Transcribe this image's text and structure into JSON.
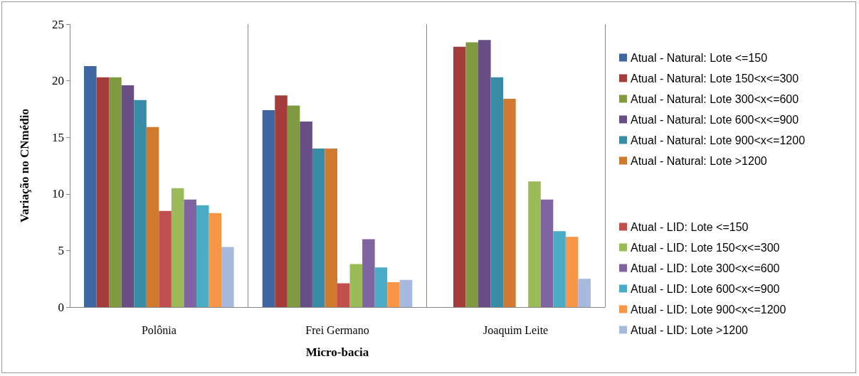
{
  "chart_data": {
    "type": "bar",
    "xlabel": "Micro-bacia",
    "ylabel": "Variação no CNmédio",
    "categories": [
      "Polônia",
      "Frei Germano",
      "Joaquim Leite"
    ],
    "ylim": [
      0,
      25
    ],
    "yticks": [
      0,
      5,
      10,
      15,
      20,
      25
    ],
    "grid": "x",
    "legend": "right",
    "series": [
      {
        "name": "Atual - Natural: Lote <=150",
        "color": "#3f66a0",
        "values": [
          21.3,
          17.4,
          null
        ]
      },
      {
        "name": "Atual - Natural: Lote 150<x<=300",
        "color": "#a33c3a",
        "values": [
          20.3,
          18.7,
          23.0
        ]
      },
      {
        "name": "Atual - Natural: Lote 300<x<=600",
        "color": "#7f9a41",
        "values": [
          20.3,
          17.8,
          23.4
        ]
      },
      {
        "name": "Atual - Natural: Lote 600<x<=900",
        "color": "#674f86",
        "values": [
          19.6,
          16.4,
          23.6
        ]
      },
      {
        "name": "Atual - Natural: Lote 900<x<=1200",
        "color": "#388ca6",
        "values": [
          18.3,
          14.0,
          20.3
        ]
      },
      {
        "name": "Atual - Natural: Lote >1200",
        "color": "#d07a2f",
        "values": [
          15.9,
          14.0,
          18.4
        ]
      },
      {
        "name": "Atual - LID: Lote <=150",
        "color": "#c0504d",
        "values": [
          8.5,
          2.1,
          null
        ]
      },
      {
        "name": "Atual - LID: Lote 150<x<=300",
        "color": "#9bbb59",
        "values": [
          10.5,
          3.8,
          11.1
        ]
      },
      {
        "name": "Atual - LID: Lote 300<x<=600",
        "color": "#8064a2",
        "values": [
          9.5,
          6.0,
          9.5
        ]
      },
      {
        "name": "Atual - LID: Lote 600<x<=900",
        "color": "#4bacc6",
        "values": [
          9.0,
          3.5,
          6.7
        ]
      },
      {
        "name": "Atual - LID: Lote 900<x<=1200",
        "color": "#f79646",
        "values": [
          8.3,
          2.2,
          6.2
        ]
      },
      {
        "name": "Atual - LID: Lote >1200",
        "color": "#a7b9dc",
        "values": [
          5.3,
          2.4,
          2.5
        ]
      }
    ]
  }
}
